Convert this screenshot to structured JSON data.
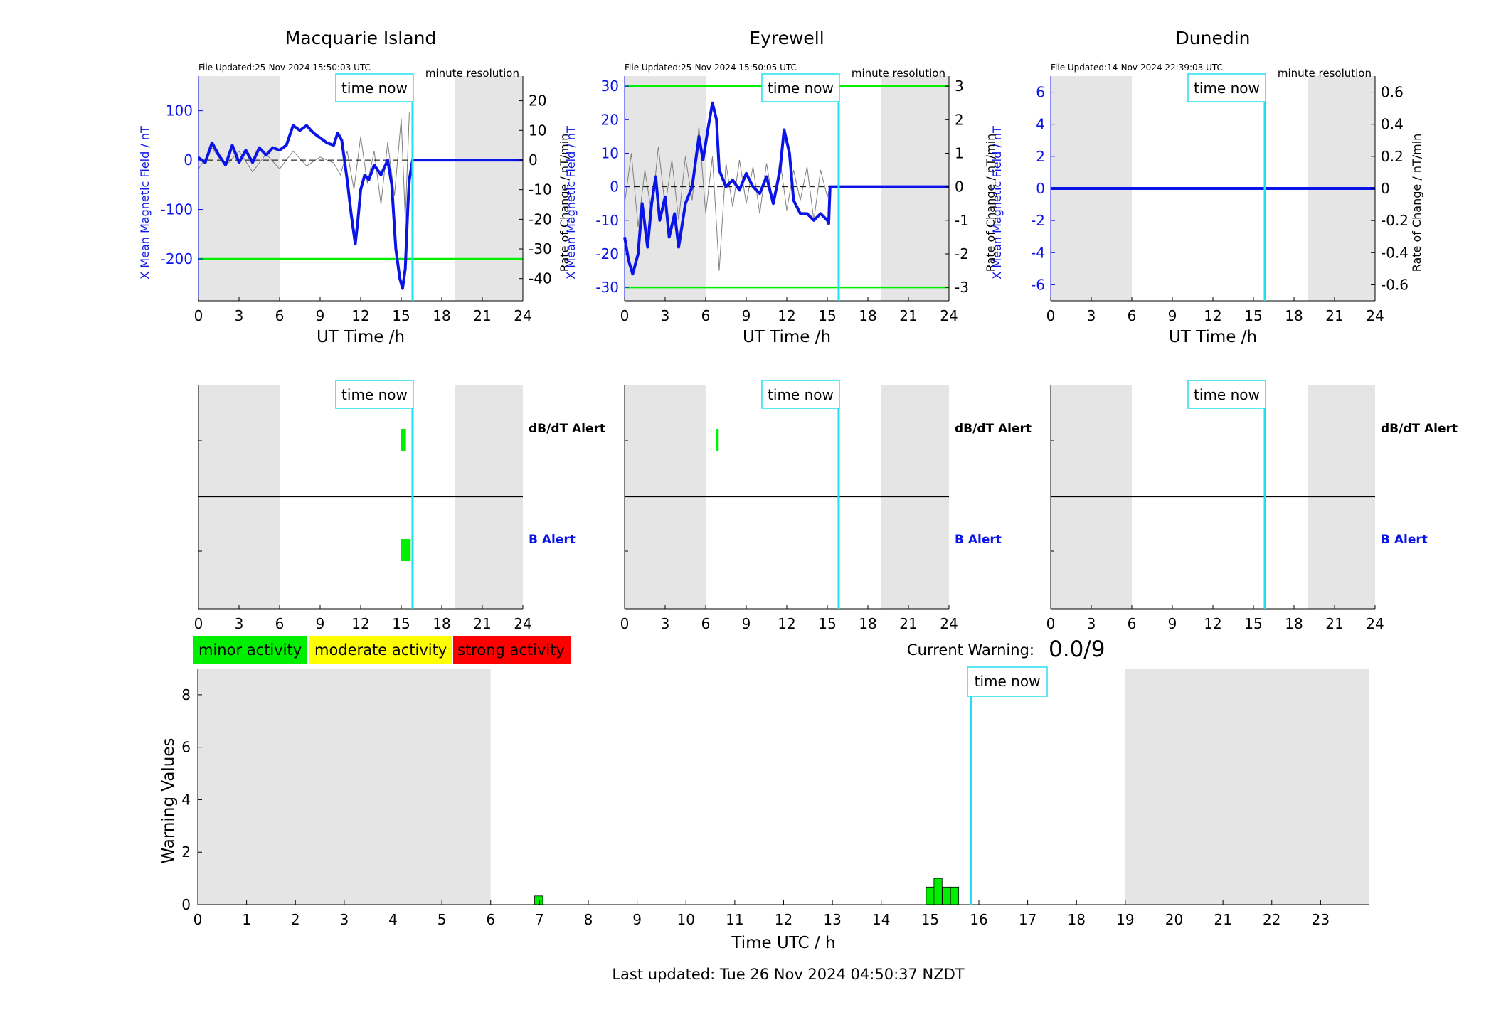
{
  "time_now_label": "time now",
  "time_now_hour": 15.84,
  "colors": {
    "field": "#0a14e6",
    "rate": "#808080",
    "threshold": "#00ee00",
    "now": "#22e0f0",
    "shade": "#e5e5e5",
    "minor": "#00ee00",
    "moderate": "#ffff00",
    "strong": "#ff0000"
  },
  "stations": [
    {
      "name": "Macquarie Island",
      "file_updated": "File Updated:25-Nov-2024 15:50:03 UTC",
      "resolution": "minute resolution",
      "ylabel_left": "X Mean Magnetic Field / nT",
      "ylabel_right": "Rate of Change / nT/min",
      "xlabel": "UT Time /h",
      "ylim_left": [
        -285,
        170
      ],
      "yticks_left": [
        100,
        0,
        -100,
        -200
      ],
      "ylim_right": [
        -47.5,
        28.3
      ],
      "yticks_right": [
        20,
        10,
        0,
        -10,
        -20,
        -30,
        -40
      ],
      "thresholds": [
        -200
      ],
      "shade": [
        [
          0,
          6
        ],
        [
          19,
          24
        ]
      ],
      "xticks": [
        0,
        3,
        6,
        9,
        12,
        15,
        18,
        21,
        24
      ],
      "field_points": [
        [
          0,
          5
        ],
        [
          0.5,
          -5
        ],
        [
          1,
          35
        ],
        [
          1.5,
          10
        ],
        [
          2,
          -10
        ],
        [
          2.5,
          30
        ],
        [
          3,
          -5
        ],
        [
          3.5,
          20
        ],
        [
          4,
          -5
        ],
        [
          4.5,
          25
        ],
        [
          5,
          10
        ],
        [
          5.5,
          25
        ],
        [
          6,
          20
        ],
        [
          6.5,
          30
        ],
        [
          7,
          70
        ],
        [
          7.5,
          60
        ],
        [
          8,
          70
        ],
        [
          8.5,
          55
        ],
        [
          9,
          45
        ],
        [
          9.5,
          35
        ],
        [
          10,
          30
        ],
        [
          10.3,
          55
        ],
        [
          10.6,
          40
        ],
        [
          11,
          -40
        ],
        [
          11.3,
          -110
        ],
        [
          11.6,
          -170
        ],
        [
          11.8,
          -120
        ],
        [
          12,
          -60
        ],
        [
          12.3,
          -30
        ],
        [
          12.6,
          -40
        ],
        [
          13,
          -10
        ],
        [
          13.5,
          -30
        ],
        [
          14,
          0
        ],
        [
          14.3,
          -50
        ],
        [
          14.6,
          -180
        ],
        [
          14.9,
          -240
        ],
        [
          15.1,
          -260
        ],
        [
          15.3,
          -220
        ],
        [
          15.5,
          -90
        ],
        [
          15.6,
          -40
        ],
        [
          15.84,
          0
        ],
        [
          24,
          0
        ]
      ],
      "rate_points": [
        [
          0,
          -3
        ],
        [
          1,
          4
        ],
        [
          2,
          -2
        ],
        [
          3,
          3
        ],
        [
          4,
          -4
        ],
        [
          5,
          2
        ],
        [
          6,
          -3
        ],
        [
          7,
          3
        ],
        [
          8,
          -2
        ],
        [
          9,
          1
        ],
        [
          10,
          -1
        ],
        [
          10.5,
          -5
        ],
        [
          11,
          3
        ],
        [
          11.5,
          -10
        ],
        [
          12,
          8
        ],
        [
          12.5,
          -8
        ],
        [
          13,
          3
        ],
        [
          13.5,
          -15
        ],
        [
          14,
          6
        ],
        [
          14.5,
          -12
        ],
        [
          15,
          14
        ],
        [
          15.3,
          -20
        ],
        [
          15.6,
          16
        ]
      ],
      "alerts": {
        "dbdt_label": "dB/dT Alert",
        "b_label": "B Alert",
        "dbdt": [
          [
            15.0,
            15.35
          ]
        ],
        "b": [
          [
            15.0,
            15.7
          ]
        ]
      }
    },
    {
      "name": "Eyrewell",
      "file_updated": "File Updated:25-Nov-2024 15:50:05 UTC",
      "resolution": "minute resolution",
      "ylabel_left": "X Mean Magnetic Field / nT",
      "ylabel_right": "Rate of Change / nT/min",
      "xlabel": "UT Time /h",
      "ylim_left": [
        -34,
        33
      ],
      "yticks_left": [
        30,
        20,
        10,
        0,
        -10,
        -20,
        -30
      ],
      "ylim_right": [
        -3.4,
        3.3
      ],
      "yticks_right": [
        3,
        2,
        1,
        0,
        -1,
        -2,
        -3
      ],
      "thresholds": [
        30,
        -30
      ],
      "shade": [
        [
          0,
          6
        ],
        [
          19,
          24
        ]
      ],
      "xticks": [
        0,
        3,
        6,
        9,
        12,
        15,
        18,
        21,
        24
      ],
      "field_points": [
        [
          0,
          -15
        ],
        [
          0.3,
          -22
        ],
        [
          0.6,
          -26
        ],
        [
          1,
          -20
        ],
        [
          1.3,
          -5
        ],
        [
          1.7,
          -18
        ],
        [
          2,
          -5
        ],
        [
          2.3,
          3
        ],
        [
          2.6,
          -10
        ],
        [
          3,
          -3
        ],
        [
          3.3,
          -15
        ],
        [
          3.7,
          -8
        ],
        [
          4,
          -18
        ],
        [
          4.5,
          -5
        ],
        [
          5,
          0
        ],
        [
          5.5,
          15
        ],
        [
          5.8,
          8
        ],
        [
          6.2,
          18
        ],
        [
          6.5,
          25
        ],
        [
          6.8,
          20
        ],
        [
          7,
          5
        ],
        [
          7.5,
          0
        ],
        [
          8,
          2
        ],
        [
          8.5,
          -1
        ],
        [
          9,
          4
        ],
        [
          9.5,
          0
        ],
        [
          10,
          -2
        ],
        [
          10.5,
          3
        ],
        [
          11,
          -5
        ],
        [
          11.5,
          5
        ],
        [
          11.8,
          17
        ],
        [
          12.2,
          10
        ],
        [
          12.5,
          -4
        ],
        [
          13,
          -8
        ],
        [
          13.5,
          -8
        ],
        [
          14,
          -10
        ],
        [
          14.5,
          -8
        ],
        [
          15,
          -10
        ],
        [
          15.1,
          -11
        ],
        [
          15.2,
          0
        ],
        [
          24,
          0
        ]
      ],
      "rate_points": [
        [
          0,
          -0.5
        ],
        [
          0.5,
          1
        ],
        [
          1,
          -1.2
        ],
        [
          1.5,
          0.5
        ],
        [
          2,
          -0.8
        ],
        [
          2.5,
          1.2
        ],
        [
          3,
          -0.6
        ],
        [
          3.5,
          0.8
        ],
        [
          4,
          -1
        ],
        [
          4.5,
          0.9
        ],
        [
          5,
          -0.4
        ],
        [
          5.5,
          1.8
        ],
        [
          6,
          -0.8
        ],
        [
          6.5,
          0.9
        ],
        [
          7,
          -2.5
        ],
        [
          7.5,
          0.7
        ],
        [
          8,
          -0.6
        ],
        [
          8.5,
          0.8
        ],
        [
          9,
          -0.5
        ],
        [
          9.5,
          0.6
        ],
        [
          10,
          -0.8
        ],
        [
          10.5,
          0.7
        ],
        [
          11,
          -0.5
        ],
        [
          11.5,
          0.8
        ],
        [
          12,
          -0.7
        ],
        [
          12.5,
          0.5
        ],
        [
          13,
          -0.4
        ],
        [
          13.5,
          0.6
        ],
        [
          14,
          -1
        ],
        [
          14.5,
          0.5
        ],
        [
          15,
          -0.3
        ],
        [
          15.2,
          0
        ]
      ],
      "alerts": {
        "dbdt_label": "dB/dT Alert",
        "b_label": "B Alert",
        "dbdt": [
          [
            6.75,
            6.95
          ]
        ],
        "b": []
      }
    },
    {
      "name": "Dunedin",
      "file_updated": "File Updated:14-Nov-2024 22:39:03 UTC",
      "resolution": "minute resolution",
      "ylabel_left": "X Mean Magnetic Field / nT",
      "ylabel_right": "Rate of Change / nT/min",
      "xlabel": "UT Time /h",
      "ylim_left": [
        -7,
        7
      ],
      "yticks_left": [
        6,
        4,
        2,
        0,
        -2,
        -4,
        -6
      ],
      "ylim_right": [
        -0.7,
        0.7
      ],
      "yticks_right": [
        0.6,
        0.4,
        0.2,
        0,
        -0.2,
        -0.4,
        -0.6
      ],
      "thresholds": [],
      "shade": [
        [
          0,
          6
        ],
        [
          19,
          24
        ]
      ],
      "xticks": [
        0,
        3,
        6,
        9,
        12,
        15,
        18,
        21,
        24
      ],
      "field_points": [
        [
          0,
          0
        ],
        [
          24,
          0
        ]
      ],
      "rate_points": [],
      "alerts": {
        "dbdt_label": "dB/dT Alert",
        "b_label": "B Alert",
        "dbdt": [],
        "b": []
      }
    }
  ],
  "legend": {
    "minor": "minor activity",
    "moderate": "moderate activity",
    "strong": "strong activity"
  },
  "current_warning": {
    "label": "Current Warning:",
    "value": "0.0/9"
  },
  "chart_data": {
    "type": "bar",
    "ylabel": "Warning Values",
    "xlabel": "Time UTC / h",
    "ylim": [
      0,
      9
    ],
    "yticks": [
      0,
      2,
      4,
      6,
      8
    ],
    "xlim": [
      0,
      24
    ],
    "xticks": [
      0,
      1,
      2,
      3,
      4,
      5,
      6,
      7,
      8,
      9,
      10,
      11,
      12,
      13,
      14,
      15,
      16,
      17,
      18,
      19,
      20,
      21,
      22,
      23
    ],
    "shade": [
      [
        0,
        6
      ],
      [
        19,
        24
      ]
    ],
    "bars": [
      {
        "x": 6.9,
        "value": 0.33
      },
      {
        "x": 14.92,
        "value": 0.67
      },
      {
        "x": 15.08,
        "value": 1.0
      },
      {
        "x": 15.25,
        "value": 0.67
      },
      {
        "x": 15.42,
        "value": 0.67
      }
    ]
  },
  "footer": "Last updated: Tue 26 Nov 2024 04:50:37 NZDT"
}
